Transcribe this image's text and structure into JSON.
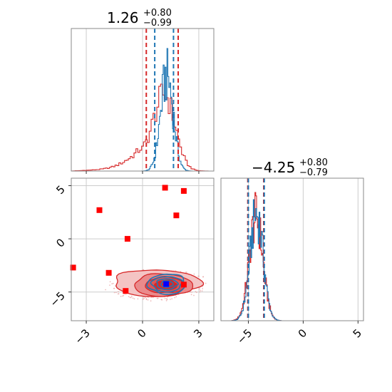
{
  "chart_data": {
    "type": "corner",
    "params": [
      {
        "name_index": 0,
        "title": {
          "median": "1.26",
          "upper": "+0.80",
          "lower": "−0.99"
        },
        "xlim": [
          -3.8,
          3.8
        ],
        "quantiles": {
          "red": [
            0.2,
            1.9
          ],
          "blue": [
            0.65,
            1.65
          ]
        }
      },
      {
        "name_index": 1,
        "title": {
          "median": "−4.25",
          "upper": "+0.80",
          "lower": "−0.79"
        },
        "xlim": [
          -7.5,
          5.5
        ],
        "quantiles": {
          "red": [
            -5.05,
            -3.6
          ],
          "blue": [
            -5.0,
            -3.55
          ]
        }
      }
    ],
    "joint": {
      "xlim": [
        -3.8,
        3.8
      ],
      "ylim": [
        -7.7,
        5.7
      ],
      "xticks": [
        -3,
        0,
        3
      ],
      "xtick_labels": [
        "−3",
        "0",
        "3"
      ],
      "yticks": [
        -5,
        0,
        5
      ],
      "ytick_labels": [
        "−5",
        "0",
        "5"
      ],
      "red_markers": [
        [
          -3.7,
          -2.7
        ],
        [
          -2.3,
          2.7
        ],
        [
          -1.8,
          -3.2
        ],
        [
          -0.8,
          0.0
        ],
        [
          -0.9,
          -4.9
        ],
        [
          1.2,
          4.8
        ],
        [
          1.8,
          2.2
        ],
        [
          2.2,
          4.5
        ],
        [
          2.2,
          -4.3
        ]
      ],
      "blue_marker": [
        1.26,
        -4.25
      ],
      "red_density_center": [
        1.1,
        -4.35
      ],
      "blue_density_center": [
        1.3,
        -4.25
      ]
    },
    "param1_ticks": [
      -5,
      0,
      5
    ],
    "param1_tick_labels": [
      "−5",
      "0",
      "5"
    ],
    "colors": {
      "red": "#d62728",
      "blue": "#1f77b4",
      "marker_red": "#ff0000",
      "marker_blue": "#0000ff"
    }
  }
}
